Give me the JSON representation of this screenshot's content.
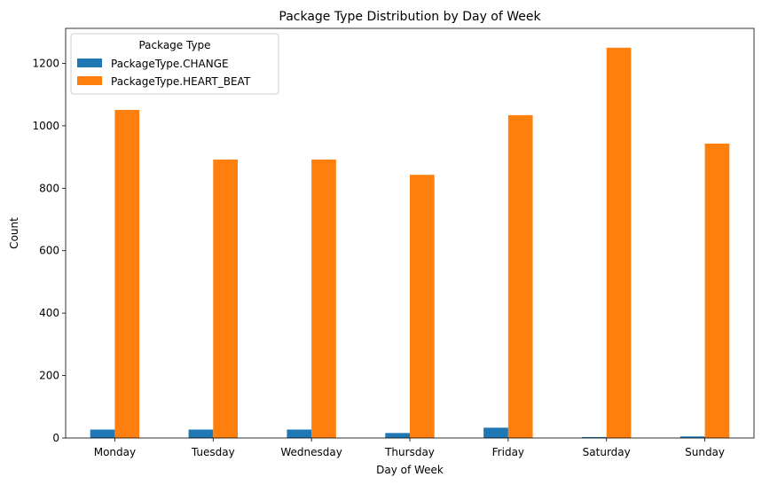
{
  "chart_data": {
    "type": "bar",
    "title": "Package Type Distribution by Day of Week",
    "xlabel": "Day of Week",
    "ylabel": "Count",
    "categories": [
      "Monday",
      "Tuesday",
      "Wednesday",
      "Thursday",
      "Friday",
      "Saturday",
      "Sunday"
    ],
    "ylim": [
      0,
      1312
    ],
    "yticks": [
      0,
      200,
      400,
      600,
      800,
      1000,
      1200
    ],
    "legend": {
      "title": "Package Type",
      "placement": "top-left"
    },
    "series": [
      {
        "name": "PackageType.CHANGE",
        "color": "#1f77b4",
        "values": [
          27,
          27,
          27,
          16,
          33,
          3,
          5
        ]
      },
      {
        "name": "PackageType.HEART_BEAT",
        "color": "#ff7f0e",
        "values": [
          1051,
          892,
          892,
          843,
          1034,
          1250,
          943
        ]
      }
    ],
    "grid": false
  }
}
